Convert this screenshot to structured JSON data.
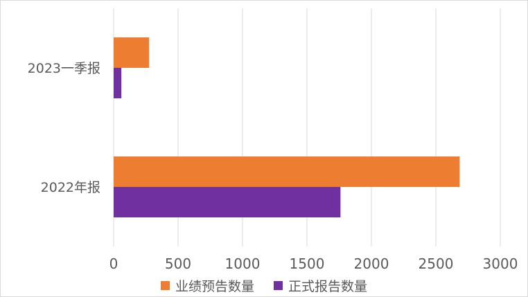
{
  "chart_data": {
    "type": "bar",
    "orientation": "horizontal",
    "title": "",
    "xlabel": "",
    "ylabel": "",
    "categories": [
      "2023一季报",
      "2022年报"
    ],
    "series": [
      {
        "name": "业绩预告数量",
        "color": "#ED7D31",
        "values": [
          275,
          2685
        ]
      },
      {
        "name": "正式报告数量",
        "color": "#7030A0",
        "values": [
          60,
          1760
        ]
      }
    ],
    "xlim": [
      0,
      3000
    ],
    "xticks": [
      0,
      500,
      1000,
      1500,
      2000,
      2500,
      3000
    ],
    "grid": "vertical",
    "legend_position": "bottom"
  }
}
